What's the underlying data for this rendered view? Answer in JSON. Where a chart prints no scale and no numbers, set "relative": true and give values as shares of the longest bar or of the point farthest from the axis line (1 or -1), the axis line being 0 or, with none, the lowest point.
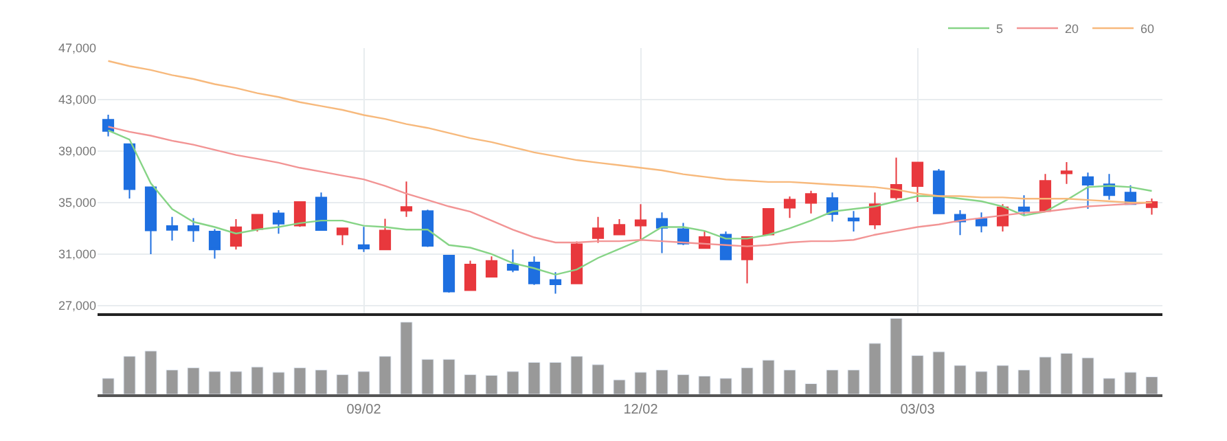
{
  "chart_data": [
    {
      "type": "candlestick",
      "categories": [
        null,
        null,
        null,
        null,
        null,
        null,
        null,
        null,
        null,
        null,
        null,
        null,
        null,
        null,
        null,
        null,
        null,
        null,
        null,
        null,
        null,
        null,
        null,
        null,
        null,
        null,
        null,
        null,
        null,
        null,
        null,
        null,
        null,
        null,
        null,
        null,
        null,
        null,
        null,
        null,
        null,
        null,
        null,
        null,
        null,
        null,
        null,
        null,
        null,
        null
      ],
      "ohlc": [
        [
          41440,
          41830,
          40140,
          40560
        ],
        [
          39540,
          39600,
          35320,
          36030
        ],
        [
          36200,
          36200,
          31000,
          32830
        ],
        [
          33180,
          33890,
          32050,
          32870
        ],
        [
          33180,
          33790,
          31950,
          32830
        ],
        [
          32760,
          32940,
          30650,
          31350
        ],
        [
          31630,
          33710,
          31350,
          33090
        ],
        [
          32940,
          34060,
          32760,
          34060
        ],
        [
          34170,
          34410,
          32580,
          33360
        ],
        [
          33210,
          35100,
          33110,
          35050
        ],
        [
          35400,
          35780,
          32860,
          32860
        ],
        [
          32520,
          33010,
          31700,
          33010
        ],
        [
          31700,
          33110,
          31170,
          31420
        ],
        [
          31350,
          33740,
          31350,
          32830
        ],
        [
          34370,
          36630,
          33890,
          34660
        ],
        [
          34340,
          34450,
          31550,
          31630
        ],
        [
          30890,
          30940,
          28000,
          28080
        ],
        [
          28190,
          30480,
          28190,
          30190
        ],
        [
          29240,
          30820,
          29240,
          30470
        ],
        [
          30190,
          31350,
          29590,
          29770
        ],
        [
          30360,
          30820,
          28600,
          28710
        ],
        [
          28990,
          29590,
          27930,
          28640
        ],
        [
          28710,
          31980,
          28710,
          31770
        ],
        [
          32240,
          33890,
          31880,
          33010
        ],
        [
          32520,
          33710,
          32520,
          33280
        ],
        [
          33210,
          34870,
          32050,
          33630
        ],
        [
          33740,
          34240,
          31070,
          33040
        ],
        [
          32940,
          33420,
          31700,
          31810
        ],
        [
          31460,
          32760,
          31460,
          32330
        ],
        [
          32520,
          32760,
          30580,
          30580
        ],
        [
          30580,
          32330,
          28720,
          32330
        ],
        [
          32520,
          34520,
          32520,
          34520
        ],
        [
          34590,
          35470,
          33810,
          35230
        ],
        [
          34970,
          35920,
          34160,
          35680
        ],
        [
          35360,
          35780,
          33530,
          34100
        ],
        [
          33780,
          34340,
          32760,
          33600
        ],
        [
          33290,
          35780,
          32940,
          34870
        ],
        [
          35400,
          38490,
          35220,
          36380
        ],
        [
          36280,
          38110,
          35050,
          38110
        ],
        [
          37430,
          37610,
          34160,
          34160
        ],
        [
          34060,
          34410,
          32480,
          33530
        ],
        [
          33740,
          34240,
          32690,
          33210
        ],
        [
          33210,
          34870,
          32760,
          34630
        ],
        [
          34630,
          35570,
          33990,
          34340
        ],
        [
          34340,
          37220,
          34340,
          36690
        ],
        [
          37260,
          38140,
          36450,
          37430
        ],
        [
          36980,
          37330,
          34520,
          36380
        ],
        [
          36420,
          37220,
          35220,
          35570
        ],
        [
          35780,
          36340,
          34870,
          34870
        ],
        [
          34630,
          35320,
          34060,
          35050
        ]
      ],
      "colors": [
        "#1e6fe0",
        "#1e6fe0",
        "#1e6fe0",
        "#1e6fe0",
        "#1e6fe0",
        "#1e6fe0",
        "#e8383d",
        "#e8383d",
        "#1e6fe0",
        "#e8383d",
        "#1e6fe0",
        "#e8383d",
        "#1e6fe0",
        "#e8383d",
        "#e8383d",
        "#1e6fe0",
        "#1e6fe0",
        "#e8383d",
        "#e8383d",
        "#1e6fe0",
        "#1e6fe0",
        "#1e6fe0",
        "#e8383d",
        "#e8383d",
        "#e8383d",
        "#e8383d",
        "#1e6fe0",
        "#1e6fe0",
        "#e8383d",
        "#1e6fe0",
        "#e8383d",
        "#e8383d",
        "#e8383d",
        "#e8383d",
        "#1e6fe0",
        "#1e6fe0",
        "#e8383d",
        "#e8383d",
        "#e8383d",
        "#1e6fe0",
        "#1e6fe0",
        "#1e6fe0",
        "#e8383d",
        "#1e6fe0",
        "#e8383d",
        "#e8383d",
        "#1e6fe0",
        "#1e6fe0",
        "#1e6fe0",
        "#e8383d"
      ],
      "series": [
        {
          "name": "5",
          "type": "line",
          "color": "#86d486",
          "values": [
            40600,
            39900,
            36500,
            34500,
            33500,
            33100,
            32600,
            32900,
            33100,
            33400,
            33600,
            33600,
            33200,
            33100,
            32900,
            32900,
            31700,
            31500,
            31000,
            30300,
            29900,
            29400,
            29800,
            30700,
            31400,
            32100,
            33100,
            33100,
            32800,
            32200,
            32200,
            32500,
            33000,
            33600,
            34300,
            34500,
            34700,
            35100,
            35500,
            35500,
            35300,
            35100,
            34700,
            34000,
            34300,
            35200,
            36200,
            36300,
            36200,
            35900
          ]
        },
        {
          "name": "20",
          "type": "line",
          "color": "#f29494",
          "values": [
            40900,
            40500,
            40200,
            39800,
            39500,
            39100,
            38700,
            38400,
            38100,
            37700,
            37400,
            37100,
            36800,
            36300,
            35700,
            35200,
            34700,
            34300,
            33600,
            32900,
            32300,
            31900,
            31900,
            32000,
            32000,
            32100,
            32000,
            31900,
            31800,
            31700,
            31600,
            31700,
            31900,
            32000,
            32000,
            32100,
            32500,
            32800,
            33100,
            33300,
            33600,
            33800,
            34000,
            34200,
            34300,
            34500,
            34700,
            34800,
            34900,
            35000
          ]
        },
        {
          "name": "60",
          "type": "line",
          "color": "#f7b97c",
          "values": [
            46000,
            45600,
            45300,
            44900,
            44600,
            44200,
            43900,
            43500,
            43200,
            42800,
            42500,
            42200,
            41800,
            41500,
            41100,
            40800,
            40400,
            40000,
            39700,
            39300,
            38900,
            38600,
            38300,
            38100,
            37900,
            37700,
            37500,
            37200,
            37000,
            36800,
            36700,
            36600,
            36600,
            36500,
            36400,
            36300,
            36200,
            36000,
            35700,
            35500,
            35500,
            35400,
            35400,
            35300,
            35300,
            35300,
            35200,
            35100,
            35000,
            35000
          ]
        }
      ],
      "ylim": [
        26400,
        47000
      ],
      "yticks": [
        {
          "value": 27000,
          "label": "27,000"
        },
        {
          "value": 31000,
          "label": "31,000"
        },
        {
          "value": 35000,
          "label": "35,000"
        },
        {
          "value": 39000,
          "label": "39,000"
        },
        {
          "value": 43000,
          "label": "43,000"
        },
        {
          "value": 47000,
          "label": "47,000"
        }
      ],
      "grid": true,
      "legend": "top right",
      "tick_labels": "y"
    },
    {
      "type": "bar",
      "categories": [
        null,
        null,
        null,
        null,
        null,
        null,
        null,
        null,
        null,
        null,
        null,
        null,
        "09/02",
        null,
        null,
        null,
        null,
        null,
        null,
        null,
        null,
        null,
        null,
        null,
        null,
        "12/02",
        null,
        null,
        null,
        null,
        null,
        null,
        null,
        null,
        null,
        null,
        null,
        null,
        "03/03",
        null,
        null,
        null,
        null,
        null,
        null,
        null,
        null,
        null,
        null,
        null
      ],
      "values": [
        0.21,
        0.5,
        0.57,
        0.32,
        0.35,
        0.3,
        0.3,
        0.36,
        0.29,
        0.35,
        0.32,
        0.26,
        0.3,
        0.5,
        0.95,
        0.46,
        0.46,
        0.26,
        0.25,
        0.3,
        0.42,
        0.42,
        0.5,
        0.39,
        0.19,
        0.29,
        0.32,
        0.26,
        0.24,
        0.21,
        0.35,
        0.45,
        0.32,
        0.14,
        0.32,
        0.32,
        0.67,
        1,
        0.51,
        0.56,
        0.38,
        0.3,
        0.38,
        0.32,
        0.49,
        0.54,
        0.48,
        0.21,
        0.29,
        0.23
      ],
      "color": "#999999",
      "relative": true,
      "tick_labels": "x"
    }
  ]
}
